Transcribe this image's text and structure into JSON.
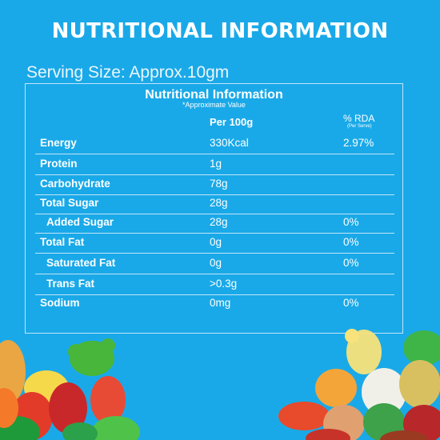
{
  "heading": "NUTRITIONAL INFORMATION",
  "serving_size": "Serving Size: Approx.10gm",
  "panel": {
    "title": "Nutritional Information",
    "subtitle": "*Approximate Value",
    "col_per100": "Per 100g",
    "col_rda": "% RDA",
    "col_rda_sub": "(Per Serve)"
  },
  "rows": [
    {
      "name": "Energy",
      "per100": "330Kcal",
      "rda": "2.97%"
    },
    {
      "name": "Protein",
      "per100": "1g",
      "rda": ""
    },
    {
      "name": "Carbohydrate",
      "per100": "78g",
      "rda": ""
    },
    {
      "name": "Total Sugar",
      "per100": "28g",
      "rda": ""
    },
    {
      "name": "Added Sugar",
      "per100": "28g",
      "rda": "0%"
    },
    {
      "name": "Total Fat",
      "per100": "0g",
      "rda": "0%"
    },
    {
      "name": "Saturated Fat",
      "per100": "0g",
      "rda": "0%"
    },
    {
      "name": "Trans Fat",
      "per100": ">0.3g",
      "rda": ""
    },
    {
      "name": "Sodium",
      "per100": "0mg",
      "rda": "0%"
    }
  ],
  "colors": {
    "background": "#1aa9e8",
    "text": "#ffffff",
    "rule": "#bfe6f8"
  }
}
